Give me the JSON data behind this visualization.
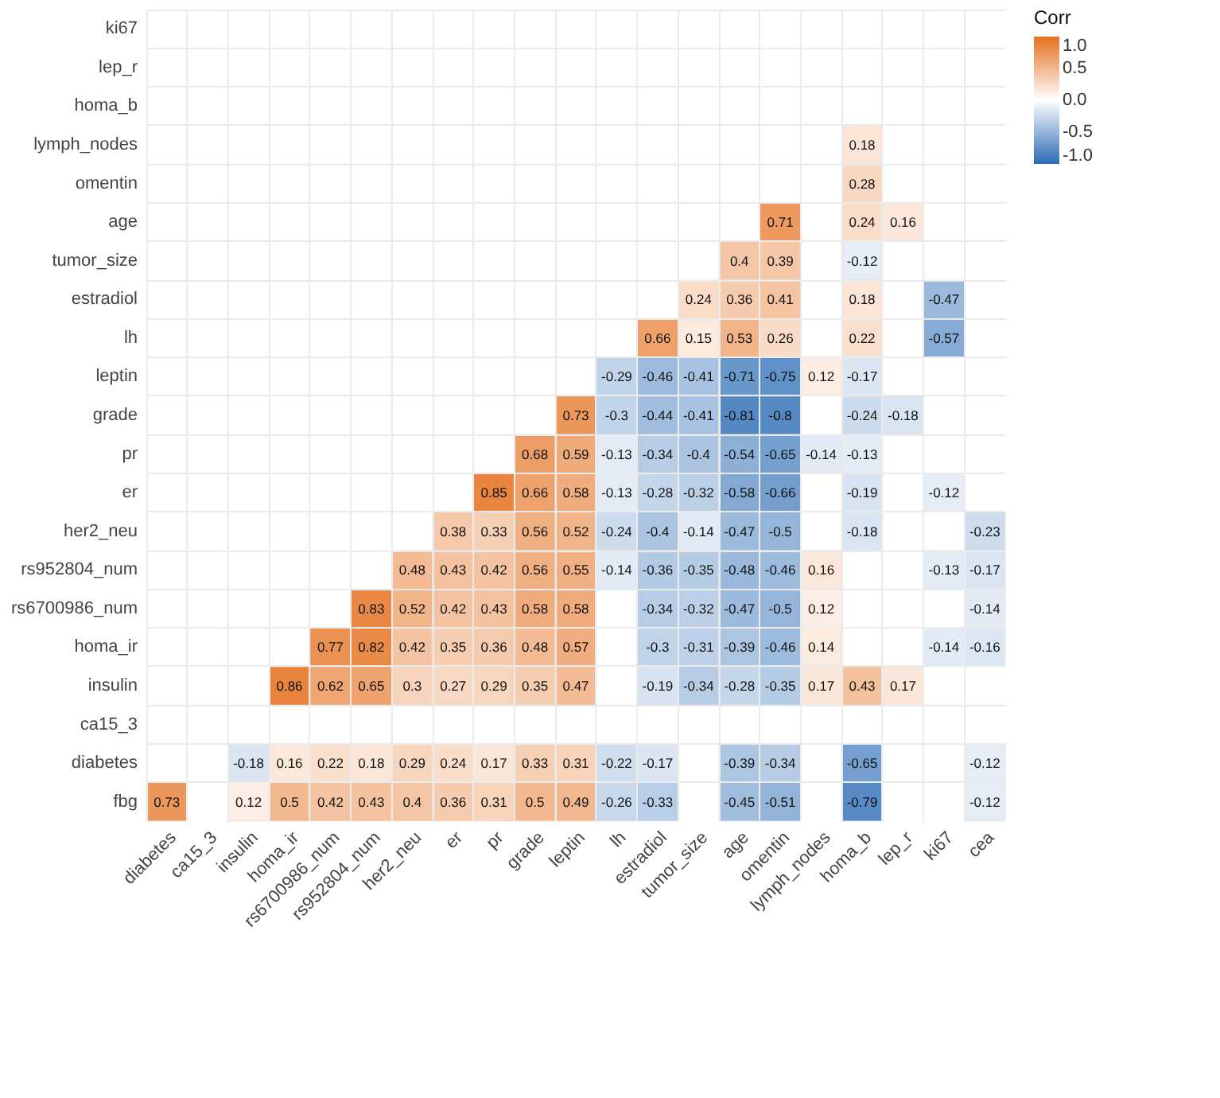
{
  "chart_data": {
    "type": "heatmap",
    "legend_title": "Corr",
    "categories": [
      "diabetes",
      "ca15_3",
      "insulin",
      "homa_ir",
      "rs6700986_num",
      "rs952804_num",
      "her2_neu",
      "er",
      "pr",
      "grade",
      "leptin",
      "lh",
      "estradiol",
      "tumor_size",
      "age",
      "omentin",
      "lymph_nodes",
      "homa_b",
      "lep_r",
      "ki67",
      "cea"
    ],
    "y_categories": [
      "ki67",
      "lep_r",
      "homa_b",
      "lymph_nodes",
      "omentin",
      "age",
      "tumor_size",
      "estradiol",
      "lh",
      "leptin",
      "grade",
      "pr",
      "er",
      "her2_neu",
      "rs952804_num",
      "rs6700986_num",
      "homa_ir",
      "insulin",
      "ca15_3",
      "diabetes",
      "fbg"
    ],
    "cells": [
      [
        null,
        null,
        null,
        null,
        null,
        null,
        null,
        null,
        null,
        null,
        null,
        null,
        null,
        null,
        null,
        null,
        null,
        null,
        null,
        null,
        null
      ],
      [
        null,
        null,
        null,
        null,
        null,
        null,
        null,
        null,
        null,
        null,
        null,
        null,
        null,
        null,
        null,
        null,
        null,
        null,
        null,
        null,
        null
      ],
      [
        null,
        null,
        null,
        null,
        null,
        null,
        null,
        null,
        null,
        null,
        null,
        null,
        null,
        null,
        null,
        null,
        null,
        null,
        null,
        null,
        null
      ],
      [
        null,
        null,
        null,
        null,
        null,
        null,
        null,
        null,
        null,
        null,
        null,
        null,
        null,
        null,
        null,
        null,
        null,
        0.18,
        null,
        null,
        null
      ],
      [
        null,
        null,
        null,
        null,
        null,
        null,
        null,
        null,
        null,
        null,
        null,
        null,
        null,
        null,
        null,
        null,
        null,
        0.28,
        null,
        null,
        null
      ],
      [
        null,
        null,
        null,
        null,
        null,
        null,
        null,
        null,
        null,
        null,
        null,
        null,
        null,
        null,
        null,
        0.71,
        null,
        0.24,
        0.16,
        null,
        null
      ],
      [
        null,
        null,
        null,
        null,
        null,
        null,
        null,
        null,
        null,
        null,
        null,
        null,
        null,
        null,
        0.4,
        0.39,
        null,
        -0.12,
        null,
        null,
        null
      ],
      [
        null,
        null,
        null,
        null,
        null,
        null,
        null,
        null,
        null,
        null,
        null,
        null,
        null,
        0.24,
        0.36,
        0.41,
        null,
        0.18,
        null,
        -0.47,
        null
      ],
      [
        null,
        null,
        null,
        null,
        null,
        null,
        null,
        null,
        null,
        null,
        null,
        null,
        0.66,
        0.15,
        0.53,
        0.26,
        null,
        0.22,
        null,
        -0.57,
        null
      ],
      [
        null,
        null,
        null,
        null,
        null,
        null,
        null,
        null,
        null,
        null,
        null,
        -0.29,
        -0.46,
        -0.41,
        -0.71,
        -0.75,
        0.12,
        -0.17,
        null,
        null,
        null
      ],
      [
        null,
        null,
        null,
        null,
        null,
        null,
        null,
        null,
        null,
        null,
        0.73,
        -0.3,
        -0.44,
        -0.41,
        -0.81,
        -0.8,
        null,
        -0.24,
        -0.18,
        null,
        null
      ],
      [
        null,
        null,
        null,
        null,
        null,
        null,
        null,
        null,
        null,
        0.68,
        0.59,
        -0.13,
        -0.34,
        -0.4,
        -0.54,
        -0.65,
        -0.14,
        -0.13,
        null,
        null,
        null
      ],
      [
        null,
        null,
        null,
        null,
        null,
        null,
        null,
        null,
        0.85,
        0.66,
        0.58,
        -0.13,
        -0.28,
        -0.32,
        -0.58,
        -0.66,
        null,
        -0.19,
        null,
        -0.12,
        null
      ],
      [
        null,
        null,
        null,
        null,
        null,
        null,
        null,
        0.38,
        0.33,
        0.56,
        0.52,
        -0.24,
        -0.4,
        -0.14,
        -0.47,
        -0.5,
        null,
        -0.18,
        null,
        null,
        -0.23
      ],
      [
        null,
        null,
        null,
        null,
        null,
        null,
        0.48,
        0.43,
        0.42,
        0.56,
        0.55,
        -0.14,
        -0.36,
        -0.35,
        -0.48,
        -0.46,
        0.16,
        null,
        null,
        -0.13,
        -0.17
      ],
      [
        null,
        null,
        null,
        null,
        null,
        0.83,
        0.52,
        0.42,
        0.43,
        0.58,
        0.58,
        null,
        -0.34,
        -0.32,
        -0.47,
        -0.5,
        0.12,
        null,
        null,
        null,
        -0.14
      ],
      [
        null,
        null,
        null,
        null,
        0.77,
        0.82,
        0.42,
        0.35,
        0.36,
        0.48,
        0.57,
        null,
        -0.3,
        -0.31,
        -0.39,
        -0.46,
        0.14,
        null,
        null,
        -0.14,
        -0.16
      ],
      [
        null,
        null,
        null,
        0.86,
        0.62,
        0.65,
        0.3,
        0.27,
        0.29,
        0.35,
        0.47,
        null,
        -0.19,
        -0.34,
        -0.28,
        -0.35,
        0.17,
        0.43,
        0.17,
        null,
        null
      ],
      [
        null,
        null,
        null,
        null,
        null,
        null,
        null,
        null,
        null,
        null,
        null,
        null,
        null,
        null,
        null,
        null,
        null,
        null,
        null,
        null,
        null
      ],
      [
        null,
        null,
        -0.18,
        0.16,
        0.22,
        0.18,
        0.29,
        0.24,
        0.17,
        0.33,
        0.31,
        -0.22,
        -0.17,
        null,
        -0.39,
        -0.34,
        null,
        -0.65,
        null,
        null,
        -0.12
      ],
      [
        0.73,
        null,
        0.12,
        0.5,
        0.42,
        0.43,
        0.4,
        0.36,
        0.31,
        0.5,
        0.49,
        -0.26,
        -0.33,
        null,
        -0.45,
        -0.51,
        null,
        -0.79,
        null,
        null,
        -0.12
      ]
    ],
    "clim": [
      -1,
      1
    ],
    "cticks": [
      {
        "value": 1,
        "label": "1.0"
      },
      {
        "value": 0.5,
        "label": "0.5"
      },
      {
        "value": 0,
        "label": "0.0"
      },
      {
        "value": -0.5,
        "label": "-0.5"
      },
      {
        "value": -1,
        "label": "-1.0"
      }
    ],
    "data_labels": true,
    "grid": true
  }
}
